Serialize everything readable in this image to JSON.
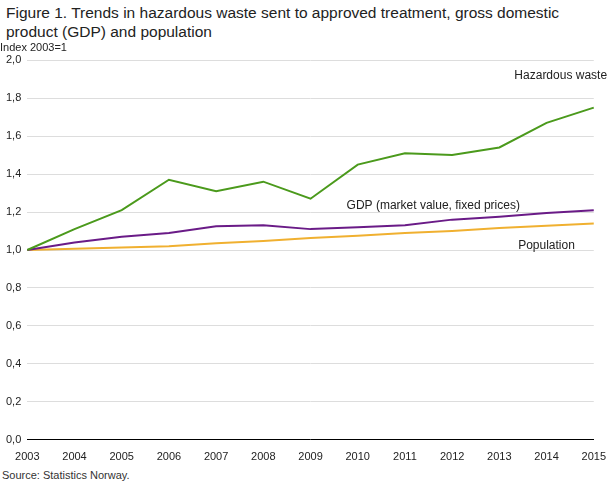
{
  "chart_data": {
    "type": "line",
    "title": "Figure 1. Trends in hazardous waste sent to approved treatment, gross domestic product (GDP) and population",
    "y_label": "Index 2003=1",
    "source": "Source: Statistics Norway.",
    "categories": [
      "2003",
      "2004",
      "2005",
      "2006",
      "2007",
      "2008",
      "2009",
      "2010",
      "2011",
      "2012",
      "2013",
      "2014",
      "2015"
    ],
    "series": [
      {
        "name": "Hazardous waste",
        "color": "#4b9a1c",
        "values": [
          1.0,
          1.11,
          1.21,
          1.37,
          1.31,
          1.36,
          1.27,
          1.45,
          1.51,
          1.5,
          1.54,
          1.67,
          1.75
        ]
      },
      {
        "name": "GDP (market value, fixed prices)",
        "color": "#6a1b87",
        "values": [
          1.0,
          1.04,
          1.07,
          1.09,
          1.125,
          1.13,
          1.11,
          1.12,
          1.13,
          1.16,
          1.175,
          1.195,
          1.21
        ]
      },
      {
        "name": "Population",
        "color": "#f0b030",
        "values": [
          1.0,
          1.006,
          1.013,
          1.02,
          1.035,
          1.048,
          1.063,
          1.075,
          1.089,
          1.1,
          1.116,
          1.128,
          1.14
        ]
      }
    ],
    "ylim": [
      0,
      2.0
    ],
    "yticks": [
      {
        "value": 0,
        "label": "0,0"
      },
      {
        "value": 0.2,
        "label": "0,2"
      },
      {
        "value": 0.4,
        "label": "0,4"
      },
      {
        "value": 0.6,
        "label": "0,6"
      },
      {
        "value": 0.8,
        "label": "0,8"
      },
      {
        "value": 1.0,
        "label": "1,0"
      },
      {
        "value": 1.2,
        "label": "1,2"
      },
      {
        "value": 1.4,
        "label": "1,4"
      },
      {
        "value": 1.6,
        "label": "1,6"
      },
      {
        "value": 1.8,
        "label": "1,8"
      },
      {
        "value": 2.0,
        "label": "2,0"
      }
    ],
    "grid": true
  }
}
